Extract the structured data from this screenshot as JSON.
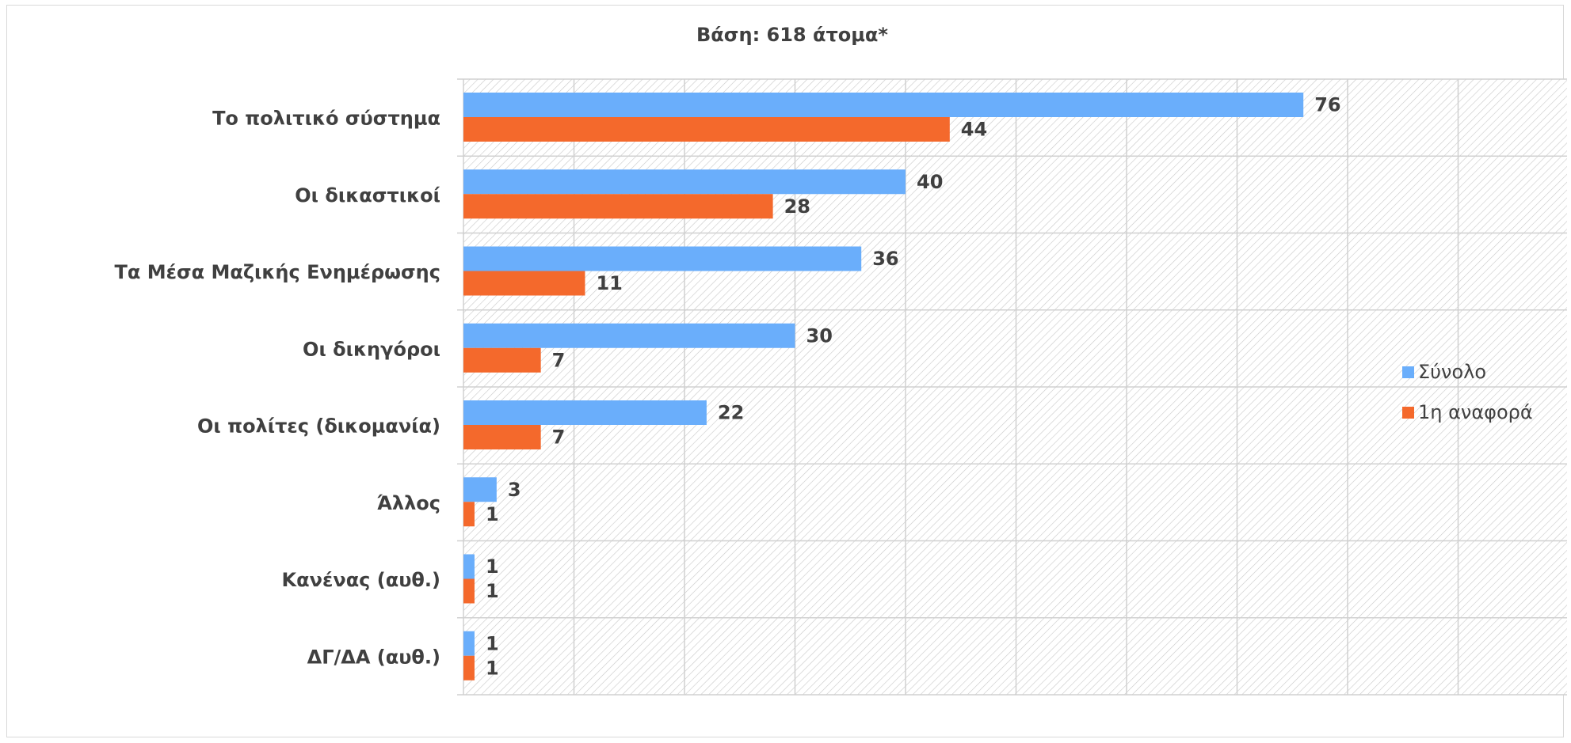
{
  "chart_data": {
    "type": "bar",
    "orientation": "horizontal",
    "title": "Βάση: 618 άτομα*",
    "categories": [
      "Το πολιτικό σύστημα",
      "Οι δικαστικοί",
      "Τα Μέσα Μαζικής Ενημέρωσης",
      "Οι δικηγόροι",
      "Οι πολίτες (δικομανία)",
      "Άλλος",
      "Κανένας (αυθ.)",
      "ΔΓ/ΔΑ (αυθ.)"
    ],
    "series": [
      {
        "name": "Σύνολο",
        "color": "#6aaefb",
        "values": [
          76,
          40,
          36,
          30,
          22,
          3,
          1,
          1
        ]
      },
      {
        "name": "1η αναφορά",
        "color": "#f4692c",
        "values": [
          44,
          28,
          11,
          7,
          7,
          1,
          1,
          1
        ]
      }
    ],
    "xlim": [
      0,
      100
    ],
    "grid": true,
    "legend_position": "right"
  }
}
